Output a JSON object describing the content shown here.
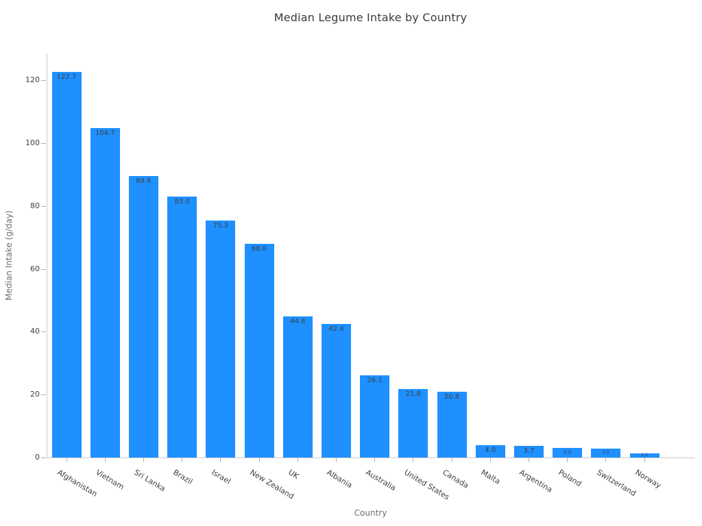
{
  "chart_data": {
    "type": "bar",
    "title": "Median Legume Intake by Country",
    "xlabel": "Country",
    "ylabel": "Median Intake (g/day)",
    "categories": [
      "Afghanistan",
      "Vietnam",
      "Sri Lanka",
      "Brazil",
      "Israel",
      "New Zealand",
      "UK",
      "Albania",
      "Australia",
      "United States",
      "Canada",
      "Malta",
      "Argentina",
      "Poland",
      "Switzerland",
      "Norway"
    ],
    "values": [
      122.7,
      104.7,
      89.6,
      83.0,
      75.3,
      68.0,
      44.8,
      42.4,
      26.1,
      21.8,
      20.8,
      4.0,
      3.7,
      3.0,
      2.9,
      1.2
    ],
    "value_labels": [
      "122.7",
      "104.7",
      "89.6",
      "83.0",
      "75.3",
      "68.0",
      "44.8",
      "42.4",
      "26.1",
      "21.8",
      "20.8",
      "4.0",
      "3.7",
      "3.0",
      "2.9",
      "1.2"
    ],
    "yticks": [
      0,
      20,
      40,
      60,
      80,
      100,
      120
    ],
    "ylim": [
      0,
      129
    ],
    "grid": false,
    "legend": null,
    "colors": {
      "bar": "#1e90ff",
      "value_label": "#3c4043",
      "tick_label": "#3f3f3f",
      "axis_label": "#6e6e6e",
      "title": "#3b3b3b",
      "spine": "#c9c9c9",
      "background": "#ffffff"
    }
  }
}
